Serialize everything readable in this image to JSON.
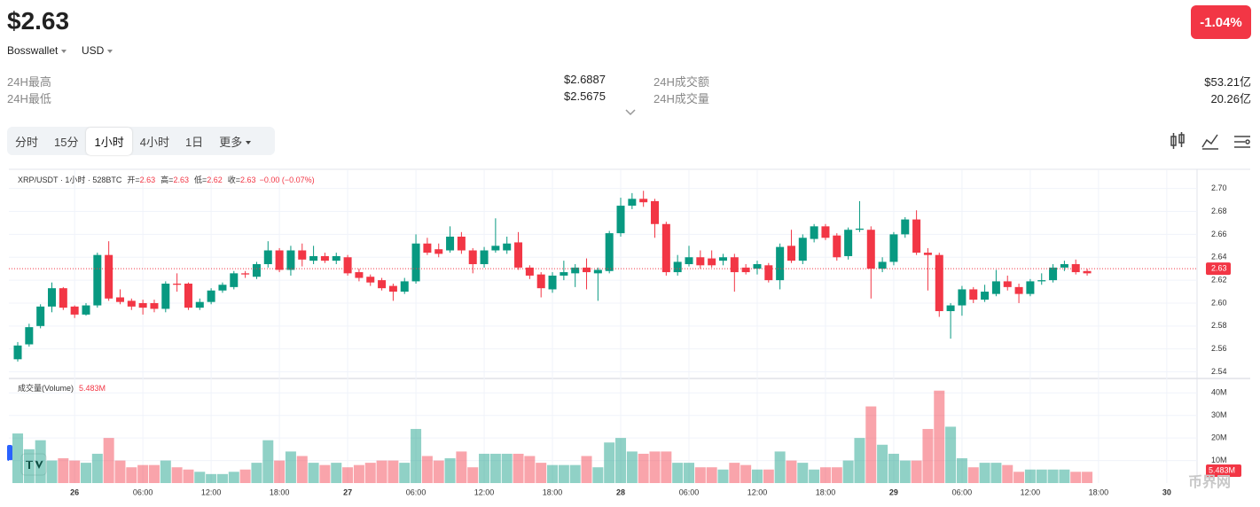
{
  "header": {
    "price": "$2.63",
    "exchange": "Bosswallet",
    "currency": "USD",
    "change": "-1.04%"
  },
  "stats": [
    {
      "label": "24H最高",
      "value": "$2.6887"
    },
    {
      "label": "24H最低",
      "value": "$2.5675"
    },
    {
      "label": "24H成交额",
      "value": "$53.21亿"
    },
    {
      "label": "24H成交量",
      "value": "20.26亿"
    }
  ],
  "tabs": [
    "分时",
    "15分",
    "1小时",
    "4小时",
    "1日",
    "更多"
  ],
  "chart_data": {
    "type": "candlestick",
    "legend": {
      "title": "XRP/USDT · 1小时 · 528BTC",
      "fields": [
        {
          "label": "开=",
          "value": "2.63"
        },
        {
          "label": "高=",
          "value": "2.63"
        },
        {
          "label": "低=",
          "value": "2.62"
        },
        {
          "label": "收=",
          "value": "2.63"
        }
      ],
      "change": "−0.00 (−0.07%)"
    },
    "volume_title": "成交量(Volume)",
    "watermark": "币界网",
    "up_color": "#089981",
    "down_color": "#f23645",
    "grid": true,
    "x": [
      0,
      1,
      2,
      3,
      4,
      5,
      6,
      7,
      8,
      9,
      10,
      11,
      12,
      13,
      14,
      15,
      16,
      17,
      18,
      19,
      20,
      21,
      22,
      23,
      24,
      25,
      26,
      27,
      28,
      29,
      30,
      31,
      32,
      33,
      34,
      35,
      36,
      37,
      38,
      39,
      40,
      41,
      42,
      43,
      44,
      45,
      46,
      47,
      48,
      49,
      50,
      51,
      52,
      53,
      54,
      55,
      56,
      57,
      58,
      59,
      60,
      61,
      62,
      63,
      64,
      65,
      66,
      67,
      68,
      69,
      70,
      71,
      72,
      73,
      74,
      75,
      76,
      77,
      78,
      79,
      80,
      81,
      82,
      83,
      84,
      85,
      86,
      87,
      88,
      89,
      90,
      91,
      92,
      93,
      94
    ],
    "open": [
      2.551,
      2.564,
      2.58,
      2.597,
      2.613,
      2.597,
      2.59,
      2.598,
      2.642,
      2.605,
      2.602,
      2.6,
      2.6,
      2.595,
      2.617,
      2.617,
      2.596,
      2.601,
      2.611,
      2.614,
      2.626,
      2.623,
      2.634,
      2.646,
      2.629,
      2.646,
      2.637,
      2.641,
      2.637,
      2.64,
      2.627,
      2.623,
      2.62,
      2.615,
      2.61,
      2.619,
      2.652,
      2.647,
      2.646,
      2.658,
      2.646,
      2.634,
      2.646,
      2.646,
      2.653,
      2.631,
      2.625,
      2.612,
      2.624,
      2.626,
      2.631,
      2.626,
      2.628,
      2.661,
      2.685,
      2.691,
      2.689,
      2.669,
      2.627,
      2.634,
      2.64,
      2.639,
      2.637,
      2.64,
      2.631,
      2.63,
      2.633,
      2.62,
      2.65,
      2.637,
      2.656,
      2.667,
      2.659,
      2.641,
      2.664,
      2.664,
      2.63,
      2.636,
      2.66,
      2.673,
      2.644,
      2.642,
      2.593,
      2.598,
      2.612,
      2.603,
      2.608,
      2.619,
      2.614,
      2.608,
      2.619,
      2.62,
      2.631,
      2.634,
      2.628
    ],
    "high": [
      2.566,
      2.582,
      2.599,
      2.618,
      2.614,
      2.598,
      2.6,
      2.644,
      2.654,
      2.612,
      2.604,
      2.603,
      2.603,
      2.619,
      2.626,
      2.618,
      2.604,
      2.613,
      2.618,
      2.628,
      2.628,
      2.636,
      2.654,
      2.648,
      2.65,
      2.652,
      2.65,
      2.644,
      2.644,
      2.642,
      2.63,
      2.625,
      2.622,
      2.617,
      2.622,
      2.66,
      2.657,
      2.652,
      2.667,
      2.662,
      2.648,
      2.649,
      2.674,
      2.658,
      2.662,
      2.633,
      2.627,
      2.627,
      2.637,
      2.634,
      2.639,
      2.631,
      2.663,
      2.692,
      2.696,
      2.698,
      2.691,
      2.671,
      2.642,
      2.65,
      2.646,
      2.646,
      2.643,
      2.643,
      2.634,
      2.637,
      2.635,
      2.652,
      2.664,
      2.66,
      2.669,
      2.669,
      2.661,
      2.666,
      2.689,
      2.667,
      2.64,
      2.662,
      2.675,
      2.681,
      2.648,
      2.644,
      2.6,
      2.615,
      2.614,
      2.616,
      2.629,
      2.624,
      2.617,
      2.621,
      2.626,
      2.634,
      2.637,
      2.638,
      2.63
    ],
    "low": [
      2.549,
      2.562,
      2.578,
      2.592,
      2.594,
      2.587,
      2.589,
      2.596,
      2.602,
      2.599,
      2.594,
      2.59,
      2.592,
      2.592,
      2.61,
      2.594,
      2.594,
      2.599,
      2.609,
      2.612,
      2.622,
      2.621,
      2.631,
      2.627,
      2.624,
      2.632,
      2.634,
      2.635,
      2.634,
      2.624,
      2.619,
      2.615,
      2.611,
      2.602,
      2.608,
      2.617,
      2.642,
      2.64,
      2.644,
      2.643,
      2.626,
      2.631,
      2.644,
      2.643,
      2.629,
      2.621,
      2.605,
      2.609,
      2.62,
      2.614,
      2.612,
      2.602,
      2.626,
      2.658,
      2.682,
      2.684,
      2.657,
      2.624,
      2.624,
      2.632,
      2.63,
      2.631,
      2.633,
      2.61,
      2.625,
      2.625,
      2.618,
      2.612,
      2.635,
      2.634,
      2.653,
      2.655,
      2.637,
      2.638,
      2.662,
      2.604,
      2.627,
      2.633,
      2.657,
      2.642,
      2.611,
      2.588,
      2.569,
      2.589,
      2.6,
      2.601,
      2.606,
      2.611,
      2.6,
      2.606,
      2.616,
      2.618,
      2.628,
      2.625,
      2.624
    ],
    "close": [
      2.563,
      2.579,
      2.597,
      2.613,
      2.596,
      2.59,
      2.598,
      2.642,
      2.604,
      2.601,
      2.597,
      2.596,
      2.595,
      2.617,
      2.616,
      2.596,
      2.601,
      2.611,
      2.616,
      2.626,
      2.625,
      2.634,
      2.646,
      2.629,
      2.646,
      2.638,
      2.641,
      2.637,
      2.641,
      2.626,
      2.622,
      2.618,
      2.613,
      2.61,
      2.619,
      2.652,
      2.644,
      2.643,
      2.658,
      2.646,
      2.634,
      2.646,
      2.65,
      2.652,
      2.631,
      2.624,
      2.613,
      2.624,
      2.627,
      2.631,
      2.627,
      2.629,
      2.661,
      2.685,
      2.691,
      2.688,
      2.669,
      2.627,
      2.636,
      2.64,
      2.633,
      2.633,
      2.64,
      2.627,
      2.627,
      2.634,
      2.62,
      2.649,
      2.637,
      2.657,
      2.667,
      2.657,
      2.64,
      2.664,
      2.665,
      2.63,
      2.636,
      2.66,
      2.673,
      2.644,
      2.642,
      2.593,
      2.598,
      2.612,
      2.603,
      2.61,
      2.619,
      2.614,
      2.608,
      2.619,
      2.62,
      2.631,
      2.634,
      2.627,
      2.626
    ],
    "volume": [
      22,
      15,
      19,
      10,
      11,
      10,
      9,
      13,
      20,
      10,
      7,
      8,
      8,
      10,
      7,
      6,
      5,
      4,
      4,
      5,
      6,
      9,
      19,
      10,
      14,
      12,
      9,
      8,
      9,
      7,
      8,
      9,
      10,
      10,
      9,
      24,
      12,
      10,
      11,
      14,
      7,
      13,
      13,
      13,
      13,
      12,
      9,
      8,
      8,
      8,
      12,
      7,
      18,
      20,
      14,
      13,
      14,
      14,
      9,
      9,
      7,
      7,
      6,
      9,
      8,
      6,
      6,
      14,
      10,
      9,
      6,
      7,
      7,
      10,
      20,
      34,
      17,
      13,
      10,
      10,
      24,
      41,
      25,
      11,
      7,
      9,
      9,
      8,
      5,
      6,
      6,
      6,
      6,
      5,
      5
    ],
    "xlim": [
      -0.78,
      103.66
    ],
    "xticks": [
      {
        "value": 5,
        "label": "26"
      },
      {
        "value": 11,
        "label": "06:00"
      },
      {
        "value": 17,
        "label": "12:00"
      },
      {
        "value": 23,
        "label": "18:00"
      },
      {
        "value": 29,
        "label": "27"
      },
      {
        "value": 35,
        "label": "06:00"
      },
      {
        "value": 41,
        "label": "12:00"
      },
      {
        "value": 47,
        "label": "18:00"
      },
      {
        "value": 53,
        "label": "28"
      },
      {
        "value": 59,
        "label": "06:00"
      },
      {
        "value": 65,
        "label": "12:00"
      },
      {
        "value": 71,
        "label": "18:00"
      },
      {
        "value": 77,
        "label": "29"
      },
      {
        "value": 83,
        "label": "06:00"
      },
      {
        "value": 89,
        "label": "12:00"
      },
      {
        "value": 95,
        "label": "18:00"
      },
      {
        "value": 101,
        "label": "30"
      }
    ],
    "ylim": [
      2.535,
      2.716
    ],
    "yticks": [
      2.54,
      2.56,
      2.58,
      {
        "value": 2.6,
        "label": "2.60"
      },
      2.62,
      2.64,
      2.66,
      2.68,
      {
        "value": 2.7,
        "label": "2.70"
      }
    ],
    "volume_ylim": [
      0,
      46
    ],
    "volume_yticks": [
      {
        "value": 10,
        "label": "10M"
      },
      {
        "value": 20,
        "label": "20M"
      },
      {
        "value": 30,
        "label": "30M"
      },
      {
        "value": 40,
        "label": "40M"
      }
    ],
    "last_price": 2.63,
    "last_volume": {
      "value": 5.483,
      "label": "5.483M"
    }
  }
}
